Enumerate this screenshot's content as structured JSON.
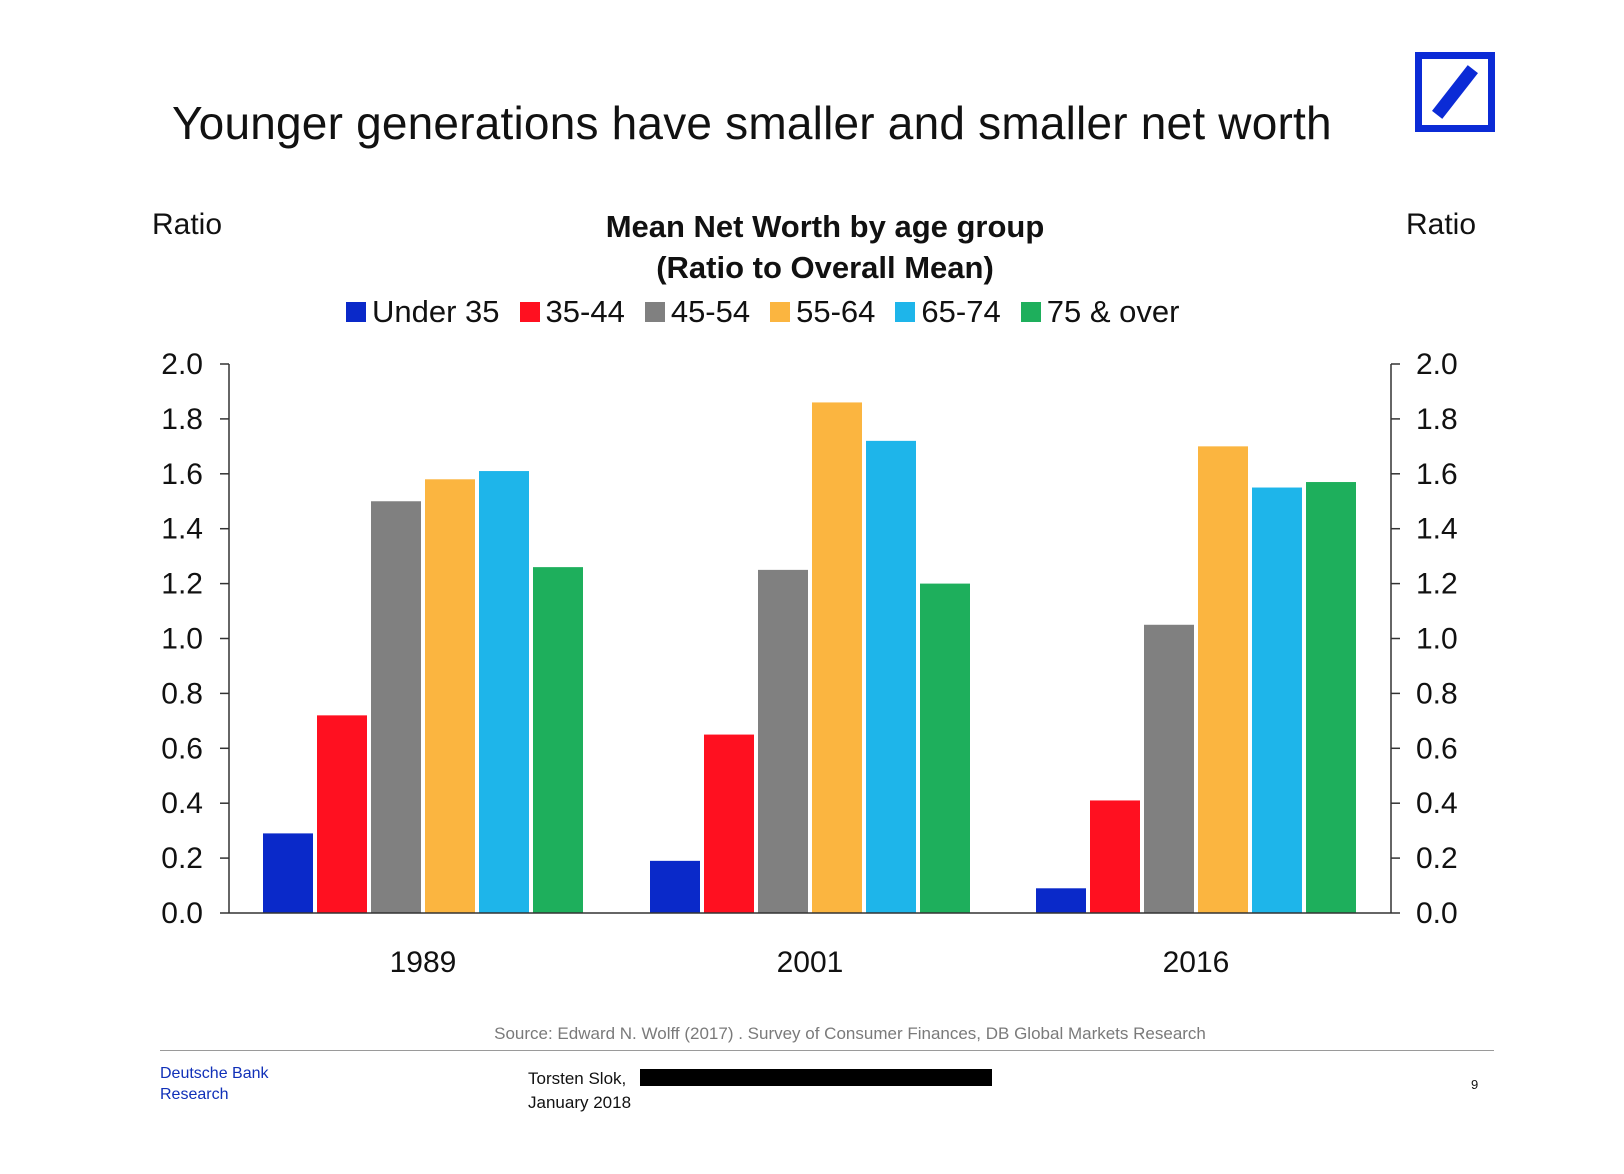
{
  "slide": {
    "title": "Younger generations have smaller and smaller net worth",
    "source": "Source: Edward N. Wolff (2017) . Survey of Consumer Finances, DB Global Markets Research",
    "brand_line1": "Deutsche Bank",
    "brand_line2": "Research",
    "author_line1": "Torsten Slok,",
    "author_line2": "January 2018",
    "page_number": "9",
    "logo_icon": "deutsche-bank-logo-icon",
    "brand_color": "#0b2bd6"
  },
  "chart_data": {
    "type": "bar",
    "title_line1": "Mean Net Worth by age group",
    "title_line2": "(Ratio to Overall Mean)",
    "ylabel_left": "Ratio",
    "ylabel_right": "Ratio",
    "categories": [
      "1989",
      "2001",
      "2016"
    ],
    "ylim": [
      0,
      2.0
    ],
    "yticks": [
      "0.0",
      "0.2",
      "0.4",
      "0.6",
      "0.8",
      "1.0",
      "1.2",
      "1.4",
      "1.6",
      "1.8",
      "2.0"
    ],
    "grid": false,
    "legend_position": "top",
    "series": [
      {
        "name": "Under 35",
        "color": "#0a29c9",
        "values": [
          0.29,
          0.19,
          0.09
        ]
      },
      {
        "name": "35-44",
        "color": "#ff1020",
        "values": [
          0.72,
          0.65,
          0.41
        ]
      },
      {
        "name": "45-54",
        "color": "#808080",
        "values": [
          1.5,
          1.25,
          1.05
        ]
      },
      {
        "name": "55-64",
        "color": "#fbb540",
        "values": [
          1.58,
          1.86,
          1.7
        ]
      },
      {
        "name": "65-74",
        "color": "#1eb5ea",
        "values": [
          1.61,
          1.72,
          1.55
        ]
      },
      {
        "name": "75 & over",
        "color": "#1eaf5c",
        "values": [
          1.26,
          1.2,
          1.57
        ]
      }
    ]
  }
}
